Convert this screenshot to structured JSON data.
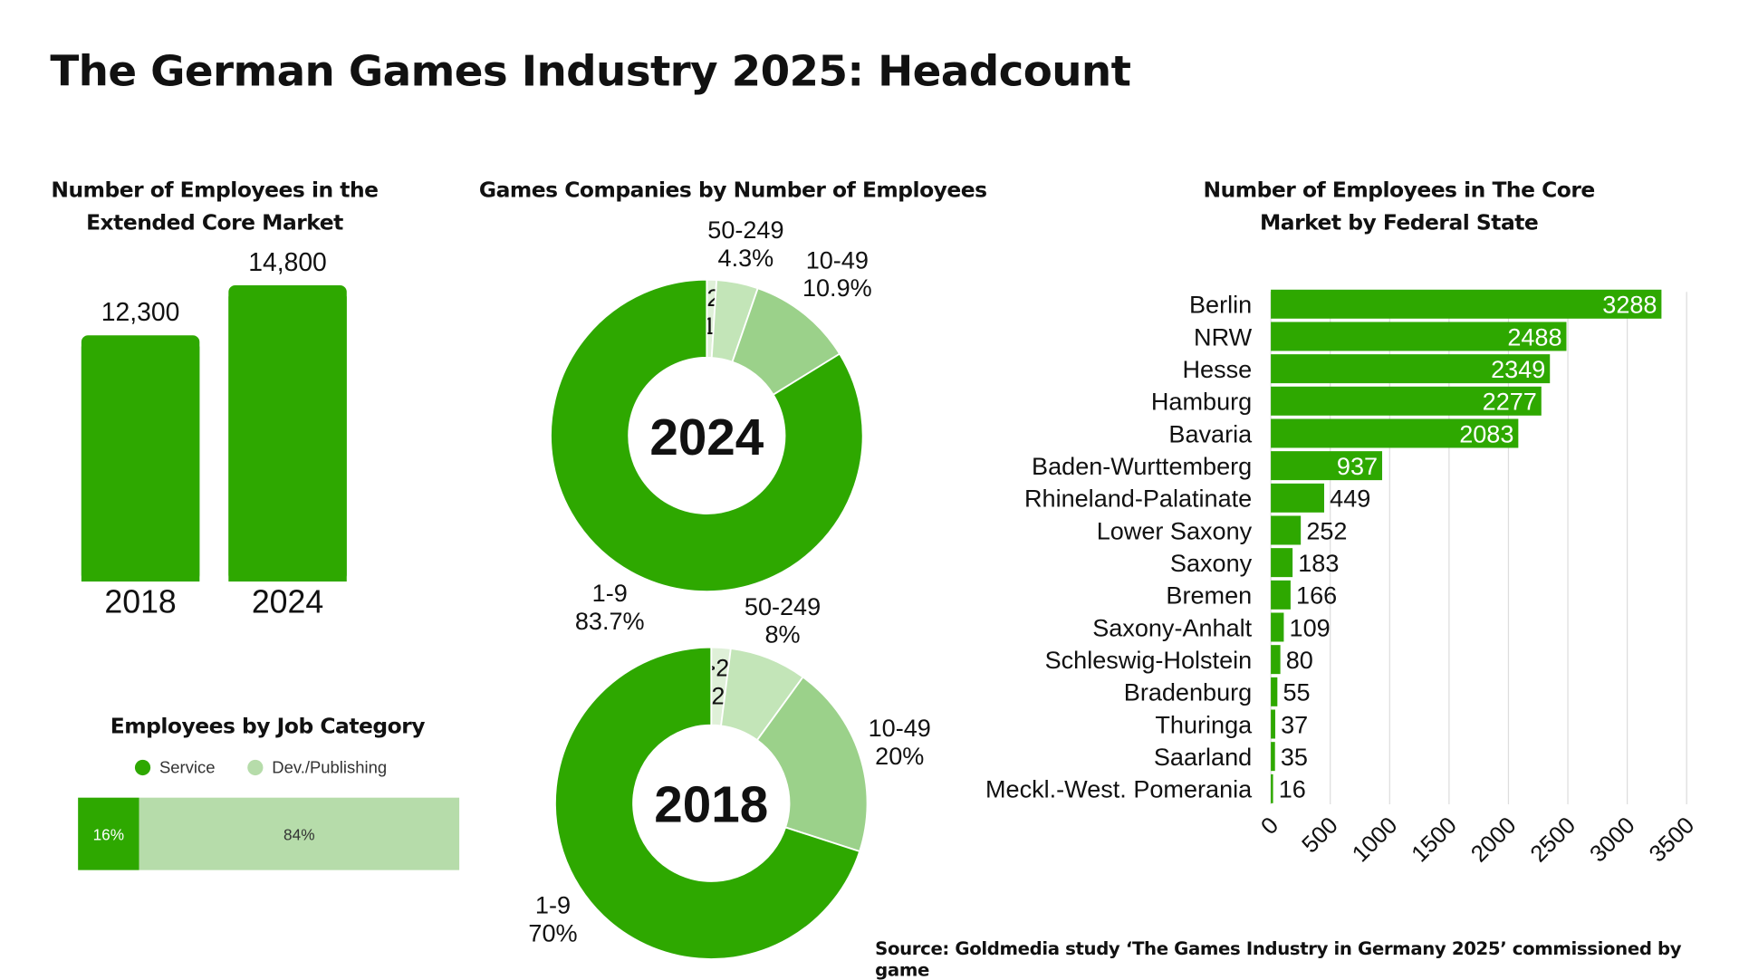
{
  "title": "The German Games Industry 2025: Headcount",
  "source": "Source: Goldmedia study ‘The Games Industry in Germany 2025’ commissioned by game",
  "colors": {
    "green": "#2ea800",
    "light": "#9bd18a",
    "lighter": "#c3e5b8",
    "lightest": "#dff0d8",
    "job_light": "#b6dcaa"
  },
  "chart_data": [
    {
      "type": "bar",
      "title": "Number of Employees in the Extended Core Market",
      "categories": [
        "2018",
        "2024"
      ],
      "values": [
        12300,
        14800
      ],
      "data_labels": [
        "12,300",
        "14,800"
      ]
    },
    {
      "type": "pie",
      "title": "Games Companies by Number of Employees",
      "center_label": "2024",
      "slices": [
        {
          "label": ">250",
          "value": 1,
          "text": "1%"
        },
        {
          "label": "50-249",
          "value": 4.3,
          "text": "4.3%"
        },
        {
          "label": "10-49",
          "value": 10.9,
          "text": "10.9%"
        },
        {
          "label": "1-9",
          "value": 83.7,
          "text": "83.7%"
        }
      ]
    },
    {
      "type": "pie",
      "center_label": "2018",
      "slices": [
        {
          "label": ">250",
          "value": 2,
          "text": "2%"
        },
        {
          "label": "50-249",
          "value": 8,
          "text": "8%"
        },
        {
          "label": "10-49",
          "value": 20,
          "text": "20%"
        },
        {
          "label": "1-9",
          "value": 70,
          "text": "70%"
        }
      ]
    },
    {
      "type": "bar",
      "orientation": "horizontal",
      "stacked": true,
      "title": "Employees by Job Category",
      "legend": [
        "Service",
        "Dev./Publishing"
      ],
      "legend_position": "top",
      "series": [
        {
          "name": "Service",
          "values": [
            16
          ],
          "text": "16%"
        },
        {
          "name": "Dev./Publishing",
          "values": [
            84
          ],
          "text": "84%"
        }
      ]
    },
    {
      "type": "bar",
      "orientation": "horizontal",
      "title": "Number of Employees in The Core Market by Federal State",
      "categories": [
        "Berlin",
        "NRW",
        "Hesse",
        "Hamburg",
        "Bavaria",
        "Baden-Wurttemberg",
        "Rhineland-Palatinate",
        "Lower Saxony",
        "Saxony",
        "Bremen",
        "Saxony-Anhalt",
        "Schleswig-Holstein",
        "Bradenburg",
        "Thuringa",
        "Saarland",
        "Meckl.-West. Pomerania"
      ],
      "values": [
        3288,
        2488,
        2349,
        2277,
        2083,
        937,
        449,
        252,
        183,
        166,
        109,
        80,
        55,
        37,
        35,
        16
      ],
      "xlim": [
        0,
        3500
      ],
      "xticks": [
        "0",
        "500",
        "1000",
        "1500",
        "2000",
        "2500",
        "3000",
        "3500"
      ],
      "grid": true
    }
  ]
}
